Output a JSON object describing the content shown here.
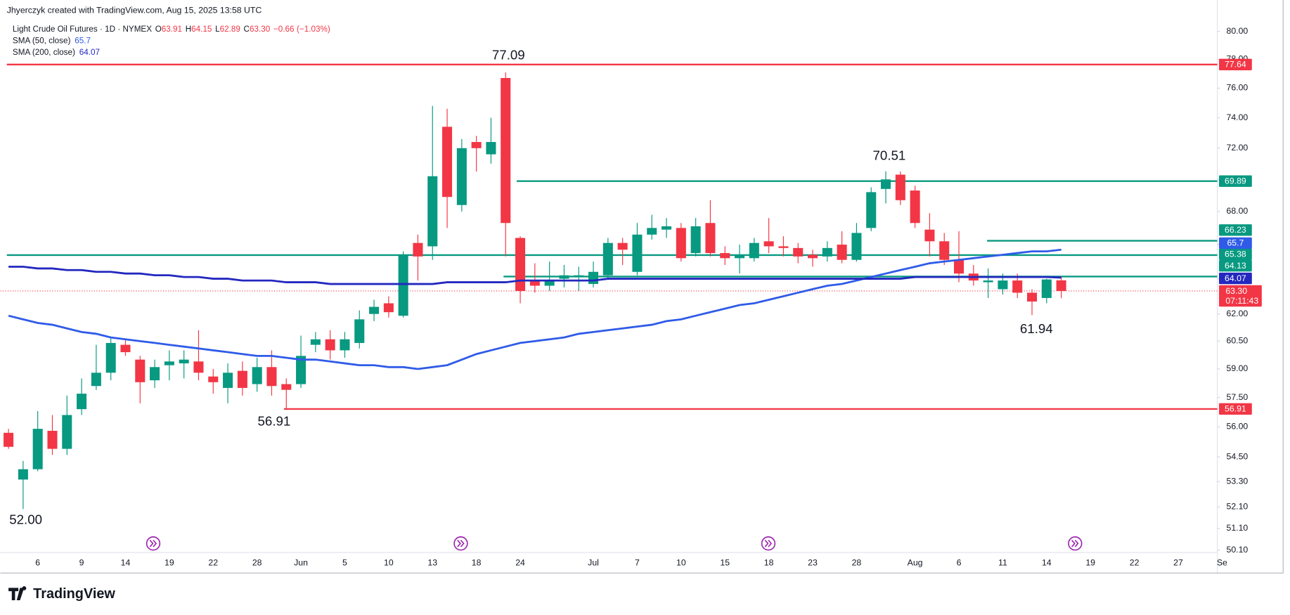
{
  "header": {
    "credit": "Jhyerczyk created with TradingView.com, Aug 15, 2025 13:58 UTC"
  },
  "footer": {
    "logo": "TradingView"
  },
  "chart_data": {
    "type": "candlestick",
    "symbol": "Light Crude Oil Futures · 1D · NYMEX",
    "legend_ohlc": {
      "o_label": "O",
      "open": 63.91,
      "h_label": "H",
      "high": 64.15,
      "l_label": "L",
      "low": 62.89,
      "c_label": "C",
      "close": {
        "value": 63.3,
        "label": "63.30"
      },
      "change": {
        "value": -0.66,
        "label": "−0.66"
      },
      "change_pct": {
        "value": -1.03,
        "label": "(−1.03%)"
      }
    },
    "up_color": "#089981",
    "down_color": "#f23645",
    "log_scale": true,
    "grid": false,
    "ylim": [
      50.0,
      80.6
    ],
    "yticks": [
      {
        "value": 80,
        "label": "80.00"
      },
      {
        "value": 78,
        "label": "78.00"
      },
      {
        "value": 76,
        "label": "76.00"
      },
      {
        "value": 74,
        "label": "74.00"
      },
      {
        "value": 72,
        "label": "72.00"
      },
      {
        "value": 70,
        "label": "70.00"
      },
      {
        "value": 68,
        "label": "68.00"
      },
      {
        "value": 66,
        "label": "66.00"
      },
      {
        "value": 64,
        "label": "64.00"
      },
      {
        "value": 62,
        "label": "62.00"
      },
      {
        "value": 60.5,
        "label": "60.50"
      },
      {
        "value": 59,
        "label": "59.00"
      },
      {
        "value": 57.5,
        "label": "57.50"
      },
      {
        "value": 56,
        "label": "56.00"
      },
      {
        "value": 54.5,
        "label": "54.50"
      },
      {
        "value": 53.3,
        "label": "53.30"
      },
      {
        "value": 52.1,
        "label": "52.10"
      },
      {
        "value": 51.1,
        "label": "51.10"
      },
      {
        "value": 50.1,
        "label": "50.10"
      }
    ],
    "categories": [
      null,
      null,
      "6",
      null,
      null,
      "9",
      null,
      null,
      "14",
      null,
      null,
      "19",
      null,
      null,
      "22",
      null,
      null,
      "28",
      null,
      null,
      "Jun",
      null,
      null,
      "5",
      null,
      null,
      "10",
      null,
      null,
      "13",
      null,
      null,
      "18",
      null,
      null,
      "24",
      null,
      null,
      null,
      null,
      "Jul",
      null,
      null,
      "7",
      null,
      null,
      "10",
      null,
      null,
      "15",
      null,
      null,
      "18",
      null,
      null,
      "23",
      null,
      null,
      "28",
      null,
      null,
      null,
      "Aug",
      null,
      null,
      "6",
      null,
      null,
      "11",
      null,
      null,
      "14",
      null,
      null,
      "19",
      null,
      null,
      "22",
      null,
      null,
      "27",
      null,
      null,
      "Se"
    ],
    "open": [
      55.7,
      53.4,
      53.9,
      55.8,
      54.9,
      56.9,
      58.1,
      58.8,
      60.3,
      59.5,
      58.4,
      59.2,
      59.3,
      59.4,
      58.6,
      58.0,
      58.9,
      58.2,
      59.1,
      58.2,
      58.2,
      60.3,
      60.6,
      60.0,
      60.4,
      62.0,
      62.6,
      61.9,
      66.1,
      65.9,
      73.4,
      68.4,
      72.4,
      71.6,
      76.7,
      66.4,
      63.9,
      63.6,
      64.0,
      64.1,
      63.7,
      64.2,
      66.1,
      64.4,
      66.6,
      66.9,
      67.0,
      65.5,
      67.3,
      65.5,
      65.2,
      65.2,
      66.2,
      65.9,
      65.8,
      65.4,
      65.3,
      66.0,
      65.1,
      67.0,
      69.4,
      70.3,
      69.3,
      66.9,
      66.2,
      65.1,
      64.3,
      63.8,
      63.4,
      63.9,
      63.2,
      62.9,
      63.91,
      null,
      null,
      null,
      null,
      null,
      null,
      null,
      null,
      null,
      null,
      null
    ],
    "high": [
      55.9,
      54.3,
      56.8,
      56.6,
      57.6,
      58.5,
      60.3,
      60.7,
      60.6,
      59.7,
      59.5,
      60.0,
      60.0,
      61.1,
      59.0,
      59.3,
      59.4,
      59.6,
      60.0,
      58.5,
      60.8,
      61.0,
      61.1,
      61.0,
      62.2,
      62.8,
      63.0,
      65.6,
      66.6,
      74.8,
      74.6,
      72.6,
      72.8,
      74.0,
      77.09,
      66.5,
      64.9,
      65.0,
      64.8,
      64.7,
      65.0,
      66.4,
      66.4,
      67.3,
      67.8,
      67.6,
      67.3,
      67.6,
      68.7,
      65.9,
      66.0,
      66.4,
      67.6,
      66.5,
      66.1,
      65.7,
      66.2,
      66.8,
      67.3,
      69.5,
      70.51,
      70.5,
      69.6,
      67.9,
      66.7,
      66.8,
      64.8,
      64.6,
      64.3,
      64.3,
      63.4,
      64.0,
      64.15,
      null,
      null,
      null,
      null,
      null,
      null,
      null,
      null,
      null,
      null,
      null
    ],
    "low": [
      54.9,
      52.0,
      53.8,
      54.6,
      54.6,
      56.6,
      57.9,
      58.4,
      59.7,
      57.2,
      58.0,
      58.4,
      58.5,
      58.4,
      57.7,
      57.2,
      57.6,
      57.8,
      57.6,
      56.91,
      58.0,
      59.9,
      59.5,
      59.6,
      60.1,
      61.6,
      61.8,
      61.8,
      63.9,
      65.1,
      67.0,
      68.0,
      70.5,
      71.0,
      65.3,
      62.6,
      63.2,
      63.3,
      63.5,
      63.3,
      63.5,
      64.0,
      64.8,
      64.2,
      66.3,
      66.4,
      65.0,
      65.3,
      65.3,
      64.8,
      64.3,
      65.0,
      65.5,
      65.3,
      64.9,
      64.7,
      65.0,
      64.9,
      65.0,
      66.8,
      68.5,
      68.4,
      67.0,
      65.3,
      64.8,
      63.8,
      63.6,
      62.9,
      63.1,
      62.9,
      61.94,
      62.6,
      62.89,
      null,
      null,
      null,
      null,
      null,
      null,
      null,
      null,
      null,
      null,
      null
    ],
    "close": [
      55.0,
      53.9,
      55.9,
      54.9,
      56.6,
      57.7,
      58.8,
      60.4,
      59.9,
      58.3,
      59.1,
      59.4,
      59.5,
      58.8,
      58.3,
      58.8,
      58.0,
      59.1,
      58.1,
      57.9,
      59.7,
      60.6,
      60.0,
      60.6,
      61.7,
      62.4,
      62.1,
      65.4,
      65.3,
      70.2,
      68.9,
      72.0,
      72.0,
      72.4,
      67.3,
      63.3,
      63.6,
      63.9,
      64.2,
      64.2,
      64.4,
      66.1,
      65.7,
      66.6,
      67.0,
      67.1,
      65.2,
      67.1,
      65.5,
      65.2,
      65.4,
      66.1,
      65.9,
      65.8,
      65.3,
      65.2,
      65.8,
      65.1,
      66.7,
      69.2,
      70.0,
      68.7,
      67.3,
      66.2,
      65.1,
      64.3,
      63.9,
      63.9,
      63.9,
      63.2,
      62.7,
      63.96,
      63.3,
      null,
      null,
      null,
      null,
      null,
      null,
      null,
      null,
      null,
      null,
      null
    ],
    "series": [
      {
        "name": "SMA (50, close)",
        "color": "#2f5be8",
        "values": [
          61.9,
          61.7,
          61.5,
          61.4,
          61.2,
          61.0,
          60.9,
          60.7,
          60.6,
          60.5,
          60.4,
          60.3,
          60.2,
          60.1,
          60.0,
          59.9,
          59.8,
          59.7,
          59.7,
          59.6,
          59.5,
          59.5,
          59.4,
          59.3,
          59.2,
          59.2,
          59.1,
          59.1,
          59.0,
          59.1,
          59.2,
          59.5,
          59.8,
          60.0,
          60.2,
          60.4,
          60.5,
          60.6,
          60.7,
          60.9,
          61.0,
          61.1,
          61.2,
          61.3,
          61.4,
          61.6,
          61.7,
          61.9,
          62.1,
          62.3,
          62.5,
          62.6,
          62.8,
          63.0,
          63.2,
          63.4,
          63.6,
          63.7,
          63.9,
          64.1,
          64.3,
          64.5,
          64.7,
          64.9,
          65.0,
          65.1,
          65.2,
          65.3,
          65.4,
          65.5,
          65.6,
          65.6,
          65.7,
          null,
          null,
          null,
          null,
          null,
          null,
          null,
          null,
          null,
          null,
          null
        ]
      },
      {
        "name": "SMA (200, close)",
        "color": "#2328bf",
        "values": [
          64.7,
          64.7,
          64.6,
          64.6,
          64.5,
          64.5,
          64.4,
          64.4,
          64.3,
          64.3,
          64.2,
          64.2,
          64.1,
          64.1,
          64.0,
          64.0,
          63.9,
          63.9,
          63.9,
          63.8,
          63.8,
          63.8,
          63.7,
          63.7,
          63.7,
          63.7,
          63.7,
          63.7,
          63.7,
          63.7,
          63.8,
          63.8,
          63.8,
          63.8,
          63.8,
          63.9,
          63.9,
          63.9,
          63.9,
          63.9,
          63.9,
          64.0,
          64.0,
          64.0,
          64.0,
          64.0,
          64.0,
          64.0,
          64.0,
          64.0,
          64.0,
          64.0,
          64.0,
          64.0,
          64.0,
          64.0,
          64.0,
          64.0,
          64.0,
          64.0,
          64.0,
          64.0,
          64.1,
          64.1,
          64.1,
          64.1,
          64.1,
          64.1,
          64.1,
          64.1,
          64.1,
          64.1,
          64.07,
          null,
          null,
          null,
          null,
          null,
          null,
          null,
          null,
          null,
          null,
          null
        ]
      }
    ],
    "levels": [
      {
        "value": 77.64,
        "color": "#f23645"
      },
      {
        "value": 69.89,
        "color": "#089981"
      },
      {
        "value": 66.23,
        "color": "#089981"
      },
      {
        "value": 65.38,
        "color": "#089981"
      },
      {
        "value": 64.13,
        "color": "#089981"
      },
      {
        "value": 56.91,
        "color": "#f23645"
      }
    ],
    "last_price": {
      "value": 63.3,
      "label": "63.30"
    },
    "countdown": "07:11:43",
    "annotations": [
      77.09,
      70.51,
      61.94,
      56.91,
      {
        "value": 52,
        "label": "52.00"
      }
    ]
  }
}
